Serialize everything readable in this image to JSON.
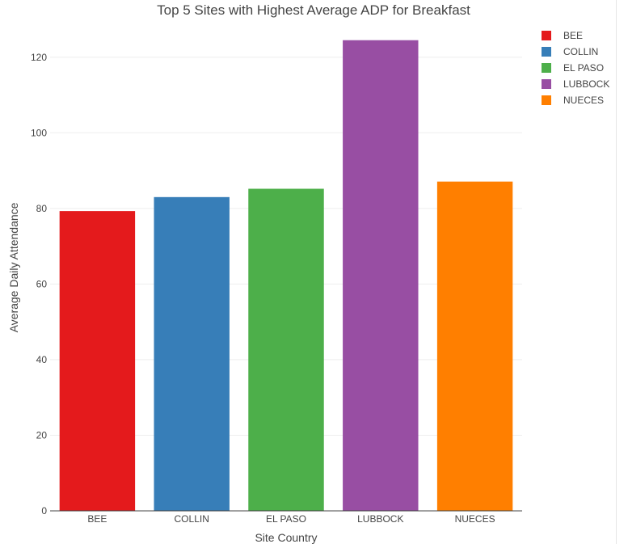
{
  "chart_data": {
    "type": "bar",
    "title": "Top 5 Sites with Highest Average ADP for Breakfast",
    "xlabel": "Site Country",
    "ylabel": "Average Daily Attendance",
    "categories": [
      "BEE",
      "COLLIN",
      "EL PASO",
      "LUBBOCK",
      "NUECES"
    ],
    "values": [
      79.3,
      83.0,
      85.2,
      124.5,
      87.1
    ],
    "colors": [
      "#e41a1c",
      "#377eb8",
      "#4daf4a",
      "#984ea3",
      "#ff7f00"
    ],
    "ylim": [
      0,
      130
    ],
    "yticks": [
      0,
      20,
      40,
      60,
      80,
      100,
      120
    ],
    "grid": true,
    "legend": {
      "placement": "top-right",
      "entries": [
        "BEE",
        "COLLIN",
        "EL PASO",
        "LUBBOCK",
        "NUECES"
      ]
    }
  }
}
